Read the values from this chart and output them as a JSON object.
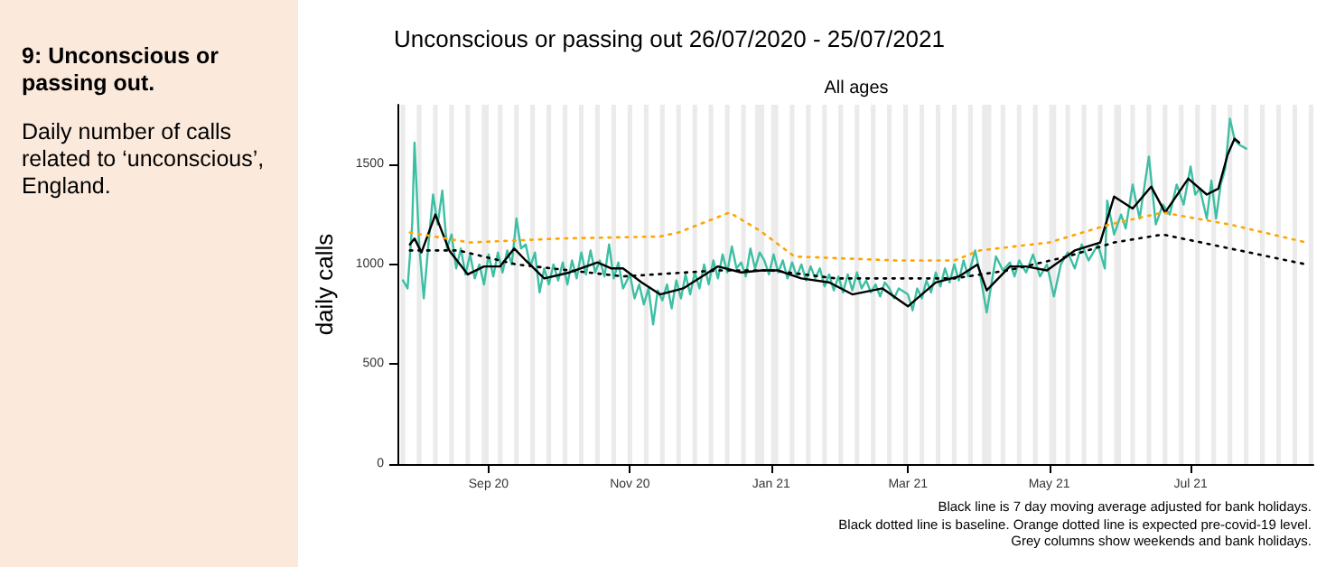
{
  "chart_data": {
    "type": "line",
    "title": "Unconscious or passing out 26/07/2020 - 25/07/2021",
    "subtitle": "All ages",
    "ylabel": "daily calls",
    "annotations": [
      "9: Unconscious or passing out.",
      "Daily number of calls related to ‘unconscious’, England.",
      "Black line is 7 day moving average adjusted for bank holidays.",
      "Black dotted line is baseline. Orange dotted line is expected pre-covid-19 level.",
      "Grey columns show weekends and bank holidays."
    ],
    "xlim": [
      "2020-07-24",
      "2021-08-23"
    ],
    "xticks": [
      {
        "value": "2020-09-01",
        "label": "Sep 20"
      },
      {
        "value": "2020-11-01",
        "label": "Nov 20"
      },
      {
        "value": "2021-01-01",
        "label": "Jan 21"
      },
      {
        "value": "2021-03-01",
        "label": "Mar 21"
      },
      {
        "value": "2021-05-01",
        "label": "May 21"
      },
      {
        "value": "2021-07-01",
        "label": "Jul 21"
      }
    ],
    "ylim": [
      0,
      1800
    ],
    "yticks": [
      0,
      500,
      1000,
      1500
    ],
    "grid": false,
    "marker": "none",
    "series": [
      {
        "color": "#3dbfa3",
        "line_style": "solid",
        "x": [
          "2020-07-26",
          "2020-07-28",
          "2020-07-30",
          "2020-07-31",
          "2020-08-02",
          "2020-08-04",
          "2020-08-06",
          "2020-08-08",
          "2020-08-10",
          "2020-08-12",
          "2020-08-14",
          "2020-08-16",
          "2020-08-18",
          "2020-08-20",
          "2020-08-22",
          "2020-08-24",
          "2020-08-26",
          "2020-08-28",
          "2020-08-30",
          "2020-09-01",
          "2020-09-03",
          "2020-09-05",
          "2020-09-07",
          "2020-09-09",
          "2020-09-11",
          "2020-09-13",
          "2020-09-15",
          "2020-09-17",
          "2020-09-19",
          "2020-09-21",
          "2020-09-23",
          "2020-09-25",
          "2020-09-27",
          "2020-09-29",
          "2020-10-01",
          "2020-10-03",
          "2020-10-05",
          "2020-10-07",
          "2020-10-09",
          "2020-10-11",
          "2020-10-13",
          "2020-10-15",
          "2020-10-17",
          "2020-10-19",
          "2020-10-21",
          "2020-10-23",
          "2020-10-25",
          "2020-10-27",
          "2020-10-29",
          "2020-11-01",
          "2020-11-03",
          "2020-11-05",
          "2020-11-07",
          "2020-11-09",
          "2020-11-11",
          "2020-11-13",
          "2020-11-15",
          "2020-11-17",
          "2020-11-19",
          "2020-11-21",
          "2020-11-23",
          "2020-11-25",
          "2020-11-27",
          "2020-11-29",
          "2020-12-01",
          "2020-12-03",
          "2020-12-05",
          "2020-12-07",
          "2020-12-09",
          "2020-12-11",
          "2020-12-13",
          "2020-12-15",
          "2020-12-17",
          "2020-12-19",
          "2020-12-21",
          "2020-12-23",
          "2020-12-25",
          "2020-12-27",
          "2020-12-29",
          "2020-12-31",
          "2021-01-02",
          "2021-01-04",
          "2021-01-06",
          "2021-01-08",
          "2021-01-10",
          "2021-01-12",
          "2021-01-14",
          "2021-01-16",
          "2021-01-18",
          "2021-01-20",
          "2021-01-22",
          "2021-01-24",
          "2021-01-26",
          "2021-01-28",
          "2021-01-30",
          "2021-02-01",
          "2021-02-03",
          "2021-02-05",
          "2021-02-07",
          "2021-02-09",
          "2021-02-11",
          "2021-02-13",
          "2021-02-15",
          "2021-02-17",
          "2021-02-19",
          "2021-02-21",
          "2021-02-23",
          "2021-02-25",
          "2021-03-01",
          "2021-03-03",
          "2021-03-05",
          "2021-03-07",
          "2021-03-09",
          "2021-03-11",
          "2021-03-13",
          "2021-03-15",
          "2021-03-17",
          "2021-03-19",
          "2021-03-21",
          "2021-03-23",
          "2021-03-25",
          "2021-03-27",
          "2021-03-30",
          "2021-04-01",
          "2021-04-04",
          "2021-04-06",
          "2021-04-08",
          "2021-04-11",
          "2021-04-14",
          "2021-04-16",
          "2021-04-18",
          "2021-04-21",
          "2021-04-24",
          "2021-04-27",
          "2021-04-30",
          "2021-05-03",
          "2021-05-06",
          "2021-05-09",
          "2021-05-12",
          "2021-05-15",
          "2021-05-18",
          "2021-05-22",
          "2021-05-25",
          "2021-05-26",
          "2021-05-29",
          "2021-06-01",
          "2021-06-03",
          "2021-06-06",
          "2021-06-09",
          "2021-06-13",
          "2021-06-16",
          "2021-06-19",
          "2021-06-22",
          "2021-06-25",
          "2021-06-28",
          "2021-07-01",
          "2021-07-03",
          "2021-07-05",
          "2021-07-08",
          "2021-07-10",
          "2021-07-12",
          "2021-07-14",
          "2021-07-16",
          "2021-07-18",
          "2021-07-20",
          "2021-07-22",
          "2021-07-25"
        ],
        "values": [
          920,
          880,
          1200,
          1610,
          1100,
          830,
          1100,
          1350,
          1200,
          1370,
          1080,
          1150,
          980,
          1080,
          950,
          1050,
          930,
          1000,
          900,
          1050,
          940,
          1060,
          960,
          1070,
          1000,
          1230,
          1080,
          1100,
          990,
          1060,
          860,
          980,
          900,
          1000,
          920,
          1010,
          900,
          1020,
          930,
          1060,
          950,
          1070,
          960,
          1020,
          940,
          1100,
          930,
          1010,
          880,
          950,
          830,
          900,
          800,
          880,
          700,
          870,
          820,
          900,
          780,
          920,
          830,
          950,
          850,
          960,
          880,
          1000,
          900,
          1020,
          930,
          1050,
          960,
          1090,
          980,
          1010,
          940,
          1080,
          980,
          1060,
          1020,
          950,
          1050,
          960,
          1020,
          930,
          1010,
          940,
          1000,
          920,
          990,
          930,
          980,
          890,
          950,
          870,
          940,
          860,
          950,
          870,
          960,
          880,
          920,
          860,
          900,
          840,
          910,
          880,
          830,
          880,
          850,
          770,
          880,
          830,
          920,
          860,
          960,
          890,
          980,
          910,
          1000,
          920,
          1020,
          940,
          1070,
          960,
          760,
          900,
          1040,
          970,
          1010,
          940,
          1020,
          960,
          1050,
          940,
          1000,
          840,
          1000,
          1060,
          980,
          1100,
          1020,
          1100,
          980,
          1320,
          1150,
          1250,
          1180,
          1400,
          1230,
          1540,
          1200,
          1300,
          1250,
          1400,
          1300,
          1490,
          1350,
          1380,
          1230,
          1420,
          1230,
          1400,
          1480,
          1730,
          1625,
          1600,
          1580
        ]
      },
      {
        "color": "#000000",
        "line_style": "solid",
        "x": [
          "2020-07-29",
          "2020-07-31",
          "2020-08-03",
          "2020-08-09",
          "2020-08-15",
          "2020-08-23",
          "2020-08-30",
          "2020-09-06",
          "2020-09-12",
          "2020-09-17",
          "2020-09-25",
          "2020-10-06",
          "2020-10-18",
          "2020-10-24",
          "2020-10-29",
          "2020-11-06",
          "2020-11-14",
          "2020-11-24",
          "2020-12-09",
          "2020-12-19",
          "2020-12-28",
          "2021-01-04",
          "2021-01-14",
          "2021-01-26",
          "2021-02-05",
          "2021-02-18",
          "2021-03-01",
          "2021-03-13",
          "2021-03-23",
          "2021-03-31",
          "2021-04-04",
          "2021-04-14",
          "2021-04-21",
          "2021-04-30",
          "2021-05-12",
          "2021-05-23",
          "2021-05-29",
          "2021-06-06",
          "2021-06-14",
          "2021-06-20",
          "2021-06-30",
          "2021-07-08",
          "2021-07-13",
          "2021-07-17",
          "2021-07-20",
          "2021-07-22"
        ],
        "values": [
          1100,
          1130,
          1060,
          1250,
          1070,
          950,
          990,
          990,
          1080,
          1020,
          930,
          960,
          1010,
          980,
          980,
          910,
          850,
          880,
          990,
          960,
          970,
          970,
          930,
          910,
          850,
          880,
          790,
          910,
          940,
          1000,
          870,
          990,
          990,
          970,
          1070,
          1110,
          1340,
          1280,
          1390,
          1260,
          1430,
          1350,
          1380,
          1550,
          1630,
          1610
        ]
      },
      {
        "color": "#000000",
        "line_style": "dotted",
        "x": [
          "2020-07-29",
          "2020-08-19",
          "2020-09-13",
          "2020-10-29",
          "2020-12-09",
          "2021-01-01",
          "2021-01-29",
          "2021-03-21",
          "2021-04-13",
          "2021-05-09",
          "2021-05-29",
          "2021-06-19",
          "2021-07-18",
          "2021-08-20"
        ],
        "values": [
          1070,
          1070,
          1000,
          940,
          970,
          970,
          930,
          930,
          970,
          1040,
          1110,
          1150,
          1080,
          1000
        ]
      },
      {
        "color": "#ffa500",
        "line_style": "dotted",
        "x": [
          "2020-07-29",
          "2020-08-24",
          "2020-10-02",
          "2020-11-14",
          "2020-11-22",
          "2020-12-14",
          "2020-12-27",
          "2021-01-11",
          "2021-02-24",
          "2021-03-21",
          "2021-04-01",
          "2021-05-01",
          "2021-05-27",
          "2021-06-19",
          "2021-07-18",
          "2021-08-20"
        ],
        "values": [
          1160,
          1110,
          1130,
          1140,
          1160,
          1260,
          1170,
          1040,
          1020,
          1020,
          1070,
          1110,
          1200,
          1260,
          1200,
          1110
        ]
      }
    ],
    "bands": [
      {
        "axis": "x",
        "from": "2020-07-25",
        "to": "2020-07-27",
        "color": "#ebebeb"
      },
      {
        "axis": "x",
        "from": "2020-08-01",
        "to": "2020-08-03",
        "color": "#ebebeb"
      },
      {
        "axis": "x",
        "from": "2020-08-08",
        "to": "2020-08-10",
        "color": "#ebebeb"
      },
      {
        "axis": "x",
        "from": "2020-08-15",
        "to": "2020-08-17",
        "color": "#ebebeb"
      },
      {
        "axis": "x",
        "from": "2020-08-22",
        "to": "2020-08-24",
        "color": "#ebebeb"
      },
      {
        "axis": "x",
        "from": "2020-08-29",
        "to": "2020-09-01",
        "color": "#ebebeb"
      },
      {
        "axis": "x",
        "from": "2020-09-05",
        "to": "2020-09-07",
        "color": "#ebebeb"
      },
      {
        "axis": "x",
        "from": "2020-09-12",
        "to": "2020-09-14",
        "color": "#ebebeb"
      },
      {
        "axis": "x",
        "from": "2020-09-19",
        "to": "2020-09-21",
        "color": "#ebebeb"
      },
      {
        "axis": "x",
        "from": "2020-09-26",
        "to": "2020-09-28",
        "color": "#ebebeb"
      },
      {
        "axis": "x",
        "from": "2020-10-03",
        "to": "2020-10-05",
        "color": "#ebebeb"
      },
      {
        "axis": "x",
        "from": "2020-10-10",
        "to": "2020-10-12",
        "color": "#ebebeb"
      },
      {
        "axis": "x",
        "from": "2020-10-17",
        "to": "2020-10-19",
        "color": "#ebebeb"
      },
      {
        "axis": "x",
        "from": "2020-10-24",
        "to": "2020-10-26",
        "color": "#ebebeb"
      },
      {
        "axis": "x",
        "from": "2020-10-31",
        "to": "2020-11-02",
        "color": "#ebebeb"
      },
      {
        "axis": "x",
        "from": "2020-11-07",
        "to": "2020-11-09",
        "color": "#ebebeb"
      },
      {
        "axis": "x",
        "from": "2020-11-14",
        "to": "2020-11-16",
        "color": "#ebebeb"
      },
      {
        "axis": "x",
        "from": "2020-11-21",
        "to": "2020-11-23",
        "color": "#ebebeb"
      },
      {
        "axis": "x",
        "from": "2020-11-28",
        "to": "2020-11-30",
        "color": "#ebebeb"
      },
      {
        "axis": "x",
        "from": "2020-12-05",
        "to": "2020-12-07",
        "color": "#ebebeb"
      },
      {
        "axis": "x",
        "from": "2020-12-12",
        "to": "2020-12-14",
        "color": "#ebebeb"
      },
      {
        "axis": "x",
        "from": "2020-12-19",
        "to": "2020-12-21",
        "color": "#ebebeb"
      },
      {
        "axis": "x",
        "from": "2020-12-25",
        "to": "2020-12-29",
        "color": "#ebebeb"
      },
      {
        "axis": "x",
        "from": "2021-01-01",
        "to": "2021-01-04",
        "color": "#ebebeb"
      },
      {
        "axis": "x",
        "from": "2021-01-09",
        "to": "2021-01-11",
        "color": "#ebebeb"
      },
      {
        "axis": "x",
        "from": "2021-01-16",
        "to": "2021-01-18",
        "color": "#ebebeb"
      },
      {
        "axis": "x",
        "from": "2021-01-23",
        "to": "2021-01-25",
        "color": "#ebebeb"
      },
      {
        "axis": "x",
        "from": "2021-01-30",
        "to": "2021-02-01",
        "color": "#ebebeb"
      },
      {
        "axis": "x",
        "from": "2021-02-06",
        "to": "2021-02-08",
        "color": "#ebebeb"
      },
      {
        "axis": "x",
        "from": "2021-02-13",
        "to": "2021-02-15",
        "color": "#ebebeb"
      },
      {
        "axis": "x",
        "from": "2021-02-20",
        "to": "2021-02-22",
        "color": "#ebebeb"
      },
      {
        "axis": "x",
        "from": "2021-02-27",
        "to": "2021-03-01",
        "color": "#ebebeb"
      },
      {
        "axis": "x",
        "from": "2021-03-06",
        "to": "2021-03-08",
        "color": "#ebebeb"
      },
      {
        "axis": "x",
        "from": "2021-03-13",
        "to": "2021-03-15",
        "color": "#ebebeb"
      },
      {
        "axis": "x",
        "from": "2021-03-20",
        "to": "2021-03-22",
        "color": "#ebebeb"
      },
      {
        "axis": "x",
        "from": "2021-03-27",
        "to": "2021-03-29",
        "color": "#ebebeb"
      },
      {
        "axis": "x",
        "from": "2021-04-02",
        "to": "2021-04-06",
        "color": "#ebebeb"
      },
      {
        "axis": "x",
        "from": "2021-04-10",
        "to": "2021-04-12",
        "color": "#ebebeb"
      },
      {
        "axis": "x",
        "from": "2021-04-17",
        "to": "2021-04-19",
        "color": "#ebebeb"
      },
      {
        "axis": "x",
        "from": "2021-04-24",
        "to": "2021-04-26",
        "color": "#ebebeb"
      },
      {
        "axis": "x",
        "from": "2021-05-01",
        "to": "2021-05-04",
        "color": "#ebebeb"
      },
      {
        "axis": "x",
        "from": "2021-05-08",
        "to": "2021-05-10",
        "color": "#ebebeb"
      },
      {
        "axis": "x",
        "from": "2021-05-15",
        "to": "2021-05-17",
        "color": "#ebebeb"
      },
      {
        "axis": "x",
        "from": "2021-05-22",
        "to": "2021-05-24",
        "color": "#ebebeb"
      },
      {
        "axis": "x",
        "from": "2021-05-29",
        "to": "2021-06-01",
        "color": "#ebebeb"
      },
      {
        "axis": "x",
        "from": "2021-06-05",
        "to": "2021-06-07",
        "color": "#ebebeb"
      },
      {
        "axis": "x",
        "from": "2021-06-12",
        "to": "2021-06-14",
        "color": "#ebebeb"
      },
      {
        "axis": "x",
        "from": "2021-06-19",
        "to": "2021-06-21",
        "color": "#ebebeb"
      },
      {
        "axis": "x",
        "from": "2021-06-26",
        "to": "2021-06-28",
        "color": "#ebebeb"
      },
      {
        "axis": "x",
        "from": "2021-07-03",
        "to": "2021-07-05",
        "color": "#ebebeb"
      },
      {
        "axis": "x",
        "from": "2021-07-10",
        "to": "2021-07-12",
        "color": "#ebebeb"
      },
      {
        "axis": "x",
        "from": "2021-07-17",
        "to": "2021-07-19",
        "color": "#ebebeb"
      },
      {
        "axis": "x",
        "from": "2021-07-24",
        "to": "2021-07-26",
        "color": "#ebebeb"
      },
      {
        "axis": "x",
        "from": "2021-07-31",
        "to": "2021-08-02",
        "color": "#ebebeb"
      },
      {
        "axis": "x",
        "from": "2021-08-07",
        "to": "2021-08-09",
        "color": "#ebebeb"
      },
      {
        "axis": "x",
        "from": "2021-08-14",
        "to": "2021-08-16",
        "color": "#ebebeb"
      },
      {
        "axis": "x",
        "from": "2021-08-21",
        "to": "2021-08-23",
        "color": "#ebebeb"
      }
    ]
  }
}
